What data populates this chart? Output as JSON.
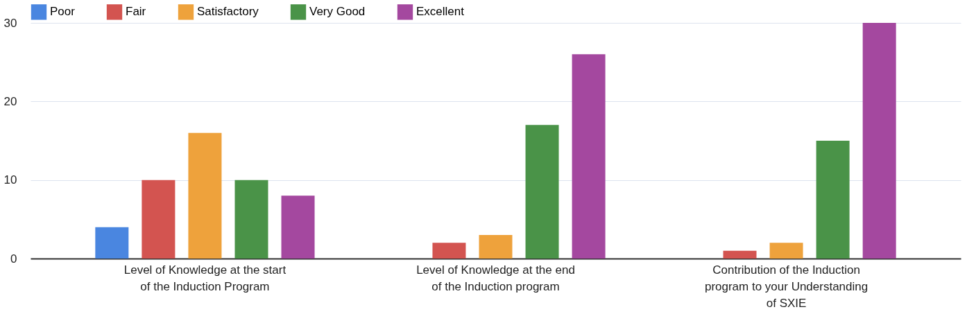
{
  "chart_data": {
    "type": "bar",
    "categories": [
      "Level of Knowledge at the start of the Induction Program",
      "Level of Knowledge at the end of the Induction program",
      "Contribution of the Induction program to your Understanding of SXIE"
    ],
    "series": [
      {
        "name": "Poor",
        "color": "#4a86e0",
        "values": [
          4,
          0,
          0
        ]
      },
      {
        "name": "Fair",
        "color": "#d35450",
        "values": [
          10,
          2,
          1
        ]
      },
      {
        "name": "Satisfactory",
        "color": "#eea23c",
        "values": [
          16,
          3,
          2
        ]
      },
      {
        "name": "Very Good",
        "color": "#4a9348",
        "values": [
          10,
          17,
          15
        ]
      },
      {
        "name": "Excellent",
        "color": "#a4489f",
        "values": [
          8,
          26,
          30
        ]
      }
    ],
    "ylim": [
      0,
      30
    ],
    "yticks": [
      0,
      10,
      20,
      30
    ],
    "grid": "y",
    "legend": "top left"
  }
}
